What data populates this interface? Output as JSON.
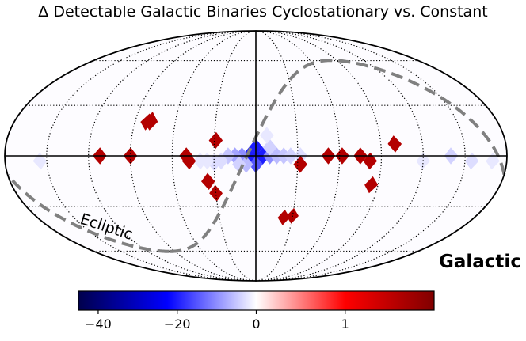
{
  "chart_data": {
    "type": "heatmap",
    "projection": "mollweide",
    "title": "Δ Detectable Galactic Binaries Cyclostationary vs. Constant",
    "coordinate_system": "Galactic",
    "ecliptic_label": "Ecliptic",
    "colorbar": {
      "colormap": "seismic",
      "ticks": [
        {
          "label": "−40",
          "value": -40
        },
        {
          "label": "−20",
          "value": -20
        },
        {
          "label": "0",
          "value": 0
        },
        {
          "label": "1",
          "value": 1
        }
      ],
      "negative_range": [
        -45,
        0
      ],
      "positive_range": [
        0,
        2
      ]
    },
    "graticule": {
      "longitude_step_deg": 30,
      "latitude_step_deg": 30
    },
    "pixels": [
      {
        "lon": 0,
        "lat": 0,
        "value": -45
      },
      {
        "lon": -5,
        "lat": 0,
        "value": -20
      },
      {
        "lon": 5,
        "lat": 0,
        "value": -20
      },
      {
        "lon": 0,
        "lat": 5,
        "value": -20
      },
      {
        "lon": 0,
        "lat": -5,
        "value": -15
      },
      {
        "lon": -10,
        "lat": 0,
        "value": -10
      },
      {
        "lon": 10,
        "lat": 0,
        "value": -10
      },
      {
        "lon": 15,
        "lat": 0,
        "value": -8
      },
      {
        "lon": -15,
        "lat": 0,
        "value": -6
      },
      {
        "lon": 20,
        "lat": 0,
        "value": -5
      },
      {
        "lon": -20,
        "lat": 0,
        "value": -5
      },
      {
        "lon": -25,
        "lat": 0,
        "value": -4
      },
      {
        "lon": 25,
        "lat": -3,
        "value": -3
      },
      {
        "lon": -32,
        "lat": 0,
        "value": -3
      },
      {
        "lon": 7,
        "lat": -5,
        "value": -6
      },
      {
        "lon": 12,
        "lat": -5,
        "value": -4
      },
      {
        "lon": -10,
        "lat": 5,
        "value": -4
      },
      {
        "lon": 30,
        "lat": -4,
        "value": -3
      },
      {
        "lon": 35,
        "lat": -3,
        "value": -2
      },
      {
        "lon": 40,
        "lat": -3,
        "value": -2
      },
      {
        "lon": -8,
        "lat": 12,
        "value": -2
      },
      {
        "lon": -140,
        "lat": 0,
        "value": -4
      },
      {
        "lon": -155,
        "lat": -3,
        "value": -3
      },
      {
        "lon": -170,
        "lat": -3,
        "value": -2
      },
      {
        "lon": -120,
        "lat": -3,
        "value": -2
      },
      {
        "lon": 155,
        "lat": -3,
        "value": -2
      },
      {
        "lon": -100,
        "lat": 7,
        "value": 1.6
      },
      {
        "lon": -75,
        "lat": 0,
        "value": 1.6
      },
      {
        "lon": -82,
        "lat": -3,
        "value": 1.6
      },
      {
        "lon": -62,
        "lat": 0,
        "value": 1.6
      },
      {
        "lon": -52,
        "lat": 0,
        "value": 1.6
      },
      {
        "lon": -32,
        "lat": -5,
        "value": 1.6
      },
      {
        "lon": -85,
        "lat": -17,
        "value": 1.6
      },
      {
        "lon": 29,
        "lat": 9,
        "value": 1.6
      },
      {
        "lon": 50,
        "lat": 0,
        "value": 1.6
      },
      {
        "lon": 48,
        "lat": -3,
        "value": 1.6
      },
      {
        "lon": 35,
        "lat": -15,
        "value": 1.6
      },
      {
        "lon": 30,
        "lat": -22,
        "value": 1.6
      },
      {
        "lon": 90,
        "lat": 0,
        "value": 1.6
      },
      {
        "lon": 112,
        "lat": 0,
        "value": 1.6
      },
      {
        "lon": 78,
        "lat": 20,
        "value": 1.6
      },
      {
        "lon": 79,
        "lat": 21,
        "value": 1.6
      },
      {
        "lon": 81,
        "lat": 20,
        "value": 1.6
      },
      {
        "lon": -30,
        "lat": -36,
        "value": 1.6
      },
      {
        "lon": -23,
        "lat": -37,
        "value": 1.6
      }
    ]
  }
}
